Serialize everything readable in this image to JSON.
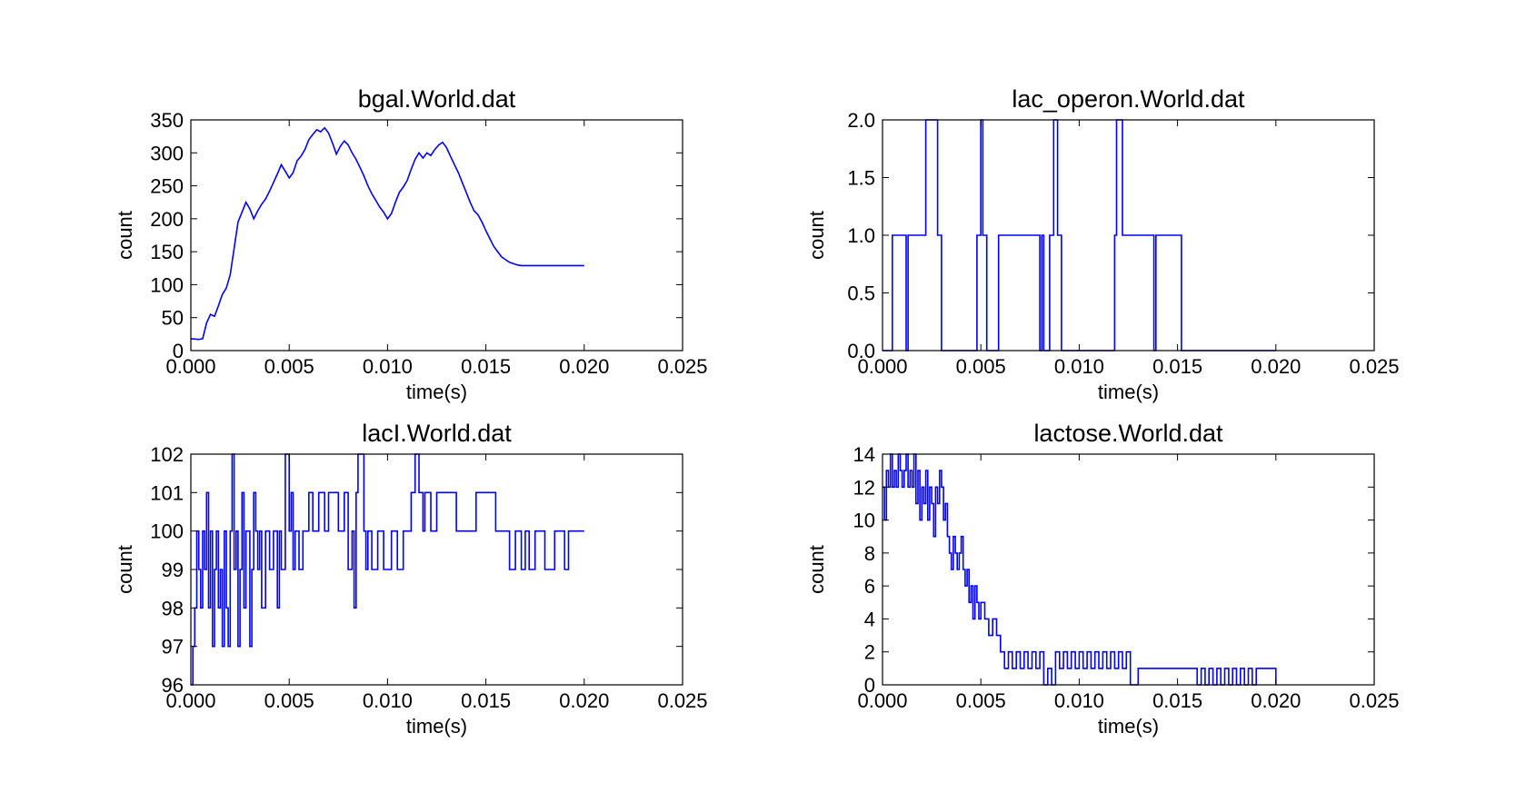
{
  "figure": {
    "background": "#ffffff",
    "line_color": "#0000ff"
  },
  "chart_data": [
    {
      "type": "line",
      "title": "bgal.World.dat",
      "xlabel": "time(s)",
      "ylabel": "count",
      "xlim": [
        0,
        0.025
      ],
      "ylim": [
        0,
        350
      ],
      "xticks": [
        0,
        0.005,
        0.01,
        0.015,
        0.02,
        0.025
      ],
      "xtick_labels": [
        "0.000",
        "0.005",
        "0.010",
        "0.015",
        "0.020",
        "0.025"
      ],
      "yticks": [
        0,
        50,
        100,
        150,
        200,
        250,
        300,
        350
      ],
      "ytick_labels": [
        "0",
        "50",
        "100",
        "150",
        "200",
        "250",
        "300",
        "350"
      ],
      "step": false,
      "series": [
        {
          "color": "#0000ff",
          "x": [
            0,
            0.0004,
            0.0006,
            0.0008,
            0.001,
            0.0012,
            0.0014,
            0.0016,
            0.0018,
            0.002,
            0.0022,
            0.0024,
            0.0026,
            0.0028,
            0.003,
            0.0032,
            0.0034,
            0.0036,
            0.0038,
            0.004,
            0.0042,
            0.0044,
            0.0046,
            0.0048,
            0.005,
            0.0052,
            0.0054,
            0.0056,
            0.0058,
            0.006,
            0.0062,
            0.0064,
            0.0066,
            0.0068,
            0.007,
            0.0072,
            0.0074,
            0.0076,
            0.0078,
            0.008,
            0.0082,
            0.0084,
            0.0086,
            0.0088,
            0.009,
            0.0092,
            0.0094,
            0.0096,
            0.0098,
            0.01,
            0.0102,
            0.0104,
            0.0106,
            0.0108,
            0.011,
            0.0112,
            0.0114,
            0.0116,
            0.0118,
            0.012,
            0.0122,
            0.0124,
            0.0126,
            0.0128,
            0.013,
            0.0132,
            0.0134,
            0.0136,
            0.0138,
            0.014,
            0.0142,
            0.0144,
            0.0146,
            0.0148,
            0.015,
            0.0152,
            0.0154,
            0.0156,
            0.0158,
            0.016,
            0.0162,
            0.0164,
            0.0166,
            0.0168,
            0.017,
            0.0172,
            0.0174,
            0.0176,
            0.0178,
            0.018,
            0.0182,
            0.0184,
            0.0186,
            0.0188,
            0.019,
            0.0192,
            0.0194,
            0.0196,
            0.0198,
            0.02
          ],
          "y": [
            18,
            17,
            18,
            42,
            55,
            52,
            68,
            85,
            95,
            115,
            155,
            195,
            210,
            225,
            215,
            200,
            212,
            222,
            230,
            242,
            255,
            268,
            282,
            272,
            262,
            270,
            288,
            295,
            305,
            320,
            328,
            335,
            332,
            338,
            330,
            315,
            298,
            310,
            318,
            312,
            300,
            290,
            278,
            265,
            250,
            238,
            228,
            218,
            210,
            200,
            208,
            225,
            240,
            248,
            258,
            275,
            290,
            300,
            292,
            300,
            296,
            305,
            312,
            316,
            308,
            295,
            282,
            270,
            255,
            240,
            225,
            212,
            206,
            195,
            182,
            170,
            158,
            150,
            142,
            138,
            134,
            132,
            130,
            129,
            129,
            129,
            129,
            129,
            129,
            129,
            129,
            129,
            129,
            129,
            129,
            129,
            129,
            129,
            129,
            129
          ]
        }
      ]
    },
    {
      "type": "line",
      "title": "lac_operon.World.dat",
      "xlabel": "time(s)",
      "ylabel": "count",
      "xlim": [
        0,
        0.025
      ],
      "ylim": [
        0,
        2.0
      ],
      "xticks": [
        0,
        0.005,
        0.01,
        0.015,
        0.02,
        0.025
      ],
      "xtick_labels": [
        "0.000",
        "0.005",
        "0.010",
        "0.015",
        "0.020",
        "0.025"
      ],
      "yticks": [
        0,
        0.5,
        1.0,
        1.5,
        2.0
      ],
      "ytick_labels": [
        "0.0",
        "0.5",
        "1.0",
        "1.5",
        "2.0"
      ],
      "step": true,
      "series": [
        {
          "color": "#0000ff",
          "x": [
            0,
            0.0005,
            0.0006,
            0.0012,
            0.0013,
            0.0022,
            0.0028,
            0.003,
            0.0035,
            0.0048,
            0.005,
            0.0051,
            0.0053,
            0.0059,
            0.008,
            0.0081,
            0.0082,
            0.0085,
            0.0087,
            0.0089,
            0.0091,
            0.0118,
            0.0119,
            0.0122,
            0.0138,
            0.0139,
            0.0152,
            0.0153,
            0.02
          ],
          "y": [
            0,
            1,
            1,
            0,
            1,
            2,
            1,
            0,
            0,
            1,
            2,
            1,
            0,
            1,
            0,
            1,
            0,
            1,
            2,
            1,
            0,
            1,
            2,
            1,
            0,
            1,
            0,
            0,
            0
          ]
        }
      ]
    },
    {
      "type": "line",
      "title": "lacI.World.dat",
      "xlabel": "time(s)",
      "ylabel": "count",
      "xlim": [
        0,
        0.025
      ],
      "ylim": [
        96,
        102
      ],
      "xticks": [
        0,
        0.005,
        0.01,
        0.015,
        0.02,
        0.025
      ],
      "xtick_labels": [
        "0.000",
        "0.005",
        "0.010",
        "0.015",
        "0.020",
        "0.025"
      ],
      "yticks": [
        96,
        97,
        98,
        99,
        100,
        101,
        102
      ],
      "ytick_labels": [
        "96",
        "97",
        "98",
        "99",
        "100",
        "101",
        "102"
      ],
      "step": true,
      "series": [
        {
          "color": "#0000ff",
          "x": [
            0,
            0.0001,
            0.0002,
            0.0003,
            0.0004,
            0.0005,
            0.0006,
            0.0007,
            0.0008,
            0.0009,
            0.001,
            0.0011,
            0.0012,
            0.0013,
            0.0014,
            0.0015,
            0.0016,
            0.0017,
            0.0018,
            0.0019,
            0.002,
            0.0021,
            0.0022,
            0.0023,
            0.0024,
            0.0025,
            0.0026,
            0.0027,
            0.0028,
            0.003,
            0.0031,
            0.0032,
            0.0033,
            0.0034,
            0.0035,
            0.0036,
            0.0038,
            0.004,
            0.0042,
            0.0044,
            0.0045,
            0.0046,
            0.0048,
            0.005,
            0.0051,
            0.0052,
            0.0053,
            0.0055,
            0.0057,
            0.006,
            0.0062,
            0.0065,
            0.0068,
            0.007,
            0.0075,
            0.0078,
            0.008,
            0.0082,
            0.0083,
            0.0084,
            0.0085,
            0.0088,
            0.0089,
            0.009,
            0.0092,
            0.0095,
            0.0098,
            0.0102,
            0.0105,
            0.0108,
            0.011,
            0.0112,
            0.0114,
            0.0116,
            0.0118,
            0.0119,
            0.012,
            0.0122,
            0.0125,
            0.0135,
            0.0145,
            0.0155,
            0.016,
            0.0162,
            0.0165,
            0.0168,
            0.017,
            0.0172,
            0.0175,
            0.018,
            0.0185,
            0.019,
            0.0192,
            0.0195,
            0.02
          ],
          "y": [
            96,
            97,
            98,
            100,
            99,
            98,
            100,
            99,
            101,
            98,
            100,
            97,
            99,
            100,
            98,
            99,
            97,
            100,
            98,
            97,
            100,
            102,
            99,
            100,
            97,
            99,
            101,
            98,
            100,
            97,
            99,
            101,
            100,
            99,
            100,
            98,
            100,
            99,
            100,
            98,
            100,
            99,
            102,
            100,
            101,
            99,
            100,
            99,
            100,
            101,
            100,
            101,
            100,
            101,
            100,
            101,
            99,
            100,
            98,
            101,
            102,
            100,
            99,
            100,
            99,
            100,
            99,
            100,
            99,
            100,
            100,
            101,
            102,
            101,
            100,
            101,
            101,
            100,
            101,
            100,
            101,
            100,
            100,
            99,
            100,
            99,
            100,
            99,
            100,
            99,
            100,
            99,
            100,
            100,
            100
          ],
          "_note": ""
        }
      ]
    },
    {
      "type": "line",
      "title": "lactose.World.dat",
      "xlabel": "time(s)",
      "ylabel": "count",
      "xlim": [
        0,
        0.025
      ],
      "ylim": [
        0,
        14
      ],
      "xticks": [
        0,
        0.005,
        0.01,
        0.015,
        0.02,
        0.025
      ],
      "xtick_labels": [
        "0.000",
        "0.005",
        "0.010",
        "0.015",
        "0.020",
        "0.025"
      ],
      "yticks": [
        0,
        2,
        4,
        6,
        8,
        10,
        12,
        14
      ],
      "ytick_labels": [
        "0",
        "2",
        "4",
        "6",
        "8",
        "10",
        "12",
        "14"
      ],
      "step": true,
      "series": [
        {
          "color": "#0000ff",
          "x": [
            0,
            0.0001,
            0.0002,
            0.0003,
            0.0004,
            0.0005,
            0.0006,
            0.0007,
            0.0008,
            0.0009,
            0.001,
            0.0011,
            0.0012,
            0.0013,
            0.0014,
            0.0015,
            0.0016,
            0.0017,
            0.0018,
            0.0019,
            0.002,
            0.0021,
            0.0022,
            0.0023,
            0.0024,
            0.0025,
            0.0026,
            0.0027,
            0.0028,
            0.0029,
            0.003,
            0.0031,
            0.0032,
            0.0033,
            0.0034,
            0.0035,
            0.0036,
            0.0037,
            0.0038,
            0.0039,
            0.004,
            0.0041,
            0.0042,
            0.0043,
            0.0044,
            0.0045,
            0.0046,
            0.0047,
            0.0048,
            0.0049,
            0.005,
            0.0052,
            0.0054,
            0.0056,
            0.0058,
            0.006,
            0.0062,
            0.0064,
            0.0066,
            0.0068,
            0.007,
            0.0072,
            0.0074,
            0.0076,
            0.0078,
            0.008,
            0.0082,
            0.0084,
            0.0086,
            0.0088,
            0.009,
            0.0092,
            0.0094,
            0.0096,
            0.0098,
            0.01,
            0.0102,
            0.0104,
            0.0106,
            0.0108,
            0.011,
            0.0112,
            0.0114,
            0.0116,
            0.0118,
            0.012,
            0.0122,
            0.0124,
            0.0126,
            0.013,
            0.014,
            0.015,
            0.016,
            0.0162,
            0.0164,
            0.0166,
            0.0168,
            0.017,
            0.0172,
            0.0174,
            0.0176,
            0.0178,
            0.018,
            0.0182,
            0.0184,
            0.0186,
            0.0188,
            0.019,
            0.0195,
            0.02
          ],
          "y": [
            12,
            10,
            13,
            12,
            14,
            12,
            13,
            12,
            14,
            13,
            12,
            13,
            14,
            12,
            13,
            12,
            14,
            11,
            13,
            10,
            12,
            11,
            13,
            10,
            12,
            11,
            9,
            12,
            11,
            13,
            12,
            10,
            11,
            9,
            8,
            7,
            9,
            8,
            7,
            8,
            9,
            7,
            6,
            7,
            5,
            6,
            4,
            6,
            5,
            4,
            5,
            4,
            3,
            4,
            3,
            2,
            1,
            2,
            1,
            2,
            1,
            2,
            1,
            2,
            1,
            2,
            0,
            1,
            0,
            2,
            1,
            2,
            1,
            2,
            1,
            2,
            1,
            2,
            1,
            2,
            1,
            2,
            1,
            2,
            1,
            2,
            1,
            2,
            0,
            1,
            1,
            1,
            0,
            1,
            0,
            1,
            0,
            1,
            0,
            1,
            0,
            1,
            0,
            1,
            0,
            1,
            0,
            1,
            1,
            0
          ]
        }
      ]
    }
  ]
}
